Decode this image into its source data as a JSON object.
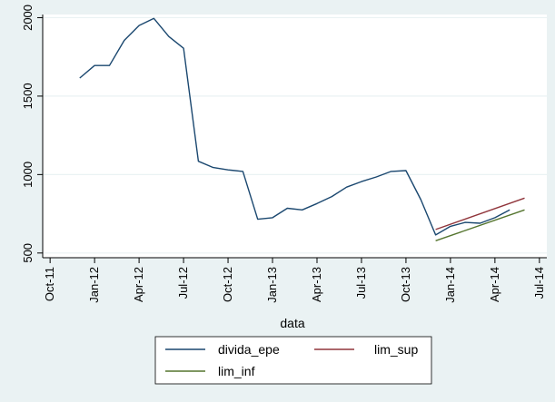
{
  "chart_data": {
    "type": "line",
    "title": "",
    "xlabel": "data",
    "ylabel": "",
    "xlim": [
      -0.5,
      33.5
    ],
    "ylim": [
      470,
      2020
    ],
    "grid": "horizontal",
    "legend_position": "bottom",
    "x_ticks": [
      {
        "x": 0,
        "label": "Oct-11"
      },
      {
        "x": 3,
        "label": "Jan-12"
      },
      {
        "x": 6,
        "label": "Apr-12"
      },
      {
        "x": 9,
        "label": "Jul-12"
      },
      {
        "x": 12,
        "label": "Oct-12"
      },
      {
        "x": 15,
        "label": "Jan-13"
      },
      {
        "x": 18,
        "label": "Apr-13"
      },
      {
        "x": 21,
        "label": "Jul-13"
      },
      {
        "x": 24,
        "label": "Oct-13"
      },
      {
        "x": 27,
        "label": "Jan-14"
      },
      {
        "x": 30,
        "label": "Apr-14"
      },
      {
        "x": 33,
        "label": "Jul-14"
      }
    ],
    "y_ticks": [
      500,
      1000,
      1500,
      2000
    ],
    "series": [
      {
        "name": "divida_epe",
        "color": "#1a476f",
        "x": [
          2,
          3,
          4,
          5,
          6,
          7,
          8,
          9,
          10,
          11,
          12,
          13,
          14,
          15,
          16,
          17,
          18,
          19,
          20,
          21,
          22,
          23,
          24,
          25,
          26,
          27,
          28,
          29,
          30,
          31
        ],
        "values": [
          1615,
          1695,
          1695,
          1855,
          1950,
          1995,
          1880,
          1805,
          1085,
          1045,
          1030,
          1020,
          715,
          725,
          785,
          775,
          815,
          860,
          920,
          955,
          985,
          1020,
          1025,
          840,
          615,
          670,
          695,
          690,
          725,
          775
        ]
      },
      {
        "name": "lim_sup",
        "color": "#90353b",
        "x": [
          26,
          32
        ],
        "values": [
          650,
          850
        ]
      },
      {
        "name": "lim_inf",
        "color": "#55752f",
        "x": [
          26,
          32
        ],
        "values": [
          578,
          775
        ]
      }
    ]
  }
}
